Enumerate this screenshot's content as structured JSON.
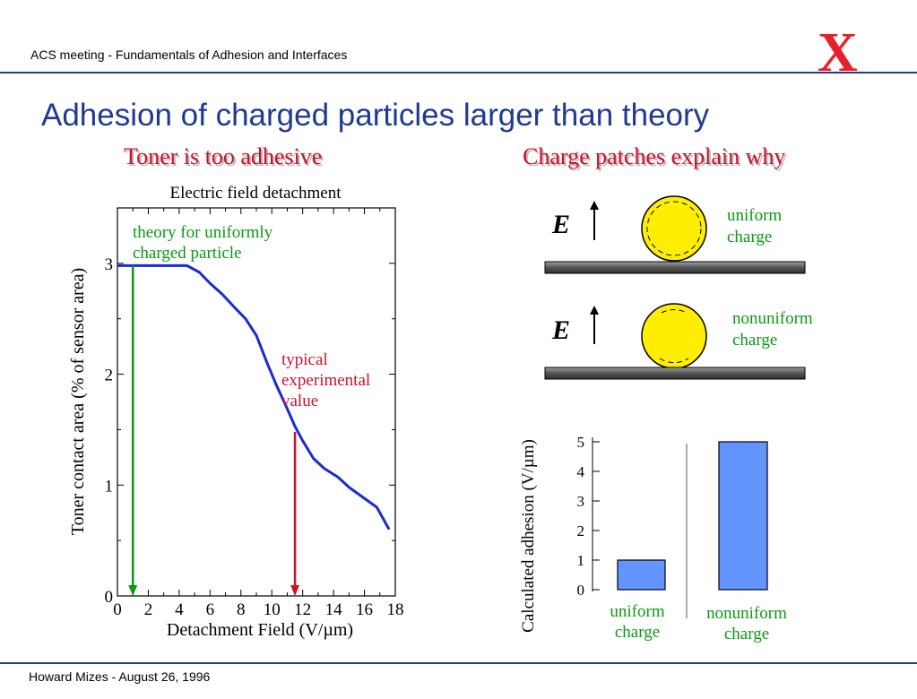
{
  "header": {
    "meeting": "ACS meeting - Fundamentals of Adhesion and Interfaces",
    "logo_letter": "X"
  },
  "slide": {
    "title": "Adhesion of charged particles larger than theory",
    "left_heading": "Toner is too adhesive",
    "right_heading": "Charge patches explain why"
  },
  "left_chart": {
    "title": "Electric field detachment",
    "xlabel": "Detachment Field (V/µm)",
    "ylabel": "Toner contact area (% of sensor area)",
    "theory_annotation": [
      "theory for uniformly",
      "charged particle"
    ],
    "experimental_annotation": [
      "typical",
      "experimental",
      "value"
    ]
  },
  "diagram": {
    "field_symbol": "E",
    "uniform_label": [
      "uniform",
      "charge"
    ],
    "nonuniform_label": [
      "nonuniform",
      "charge"
    ]
  },
  "bar_chart_labels": {
    "uniform": [
      "uniform",
      "charge"
    ],
    "nonuniform": [
      "nonuniform",
      "charge"
    ]
  },
  "footer": {
    "text": "Howard Mizes - August 26, 1996"
  },
  "colors": {
    "title_blue": "#1f3a93",
    "heading_red": "#d0102a",
    "curve_blue": "#1a2ad8",
    "theory_green": "#0a9a10",
    "experimental_red": "#d0102a",
    "bar_fill": "#6495ff",
    "particle_yellow": "#ffee00"
  },
  "chart_data": [
    {
      "type": "line",
      "title": "Electric field detachment",
      "xlabel": "Detachment Field (V/µm)",
      "ylabel": "Toner contact area (% of sensor area)",
      "xlim": [
        0,
        18
      ],
      "ylim": [
        0,
        3.5
      ],
      "x_ticks": [
        0,
        2,
        4,
        6,
        8,
        10,
        12,
        14,
        16,
        18
      ],
      "y_ticks": [
        0,
        1,
        2,
        3
      ],
      "grid": false,
      "series": [
        {
          "x": [
            0,
            4.5,
            5.3,
            6.0,
            6.8,
            7.6,
            8.3,
            9.0,
            9.7,
            10.3,
            10.9,
            11.5,
            12.0,
            12.7,
            13.4,
            14.3,
            15.0,
            16.0,
            16.8,
            17.6
          ],
          "y": [
            2.98,
            2.98,
            2.92,
            2.82,
            2.72,
            2.6,
            2.5,
            2.35,
            2.1,
            1.9,
            1.72,
            1.53,
            1.4,
            1.24,
            1.15,
            1.07,
            0.98,
            0.88,
            0.8,
            0.6
          ]
        }
      ],
      "annotations": [
        {
          "x": 1.0,
          "y_from": 2.98,
          "y_to": 0,
          "color": "green"
        },
        {
          "x": 11.5,
          "y_from": 1.48,
          "y_to": 0,
          "color": "red"
        }
      ]
    },
    {
      "type": "bar",
      "ylabel": "Calculated adhesion (V/µm)",
      "categories": [
        "uniform charge",
        "nonuniform charge"
      ],
      "values": [
        1.0,
        5.0
      ],
      "ylim": [
        0,
        5
      ],
      "y_ticks": [
        0,
        1,
        2,
        3,
        4,
        5
      ]
    }
  ]
}
